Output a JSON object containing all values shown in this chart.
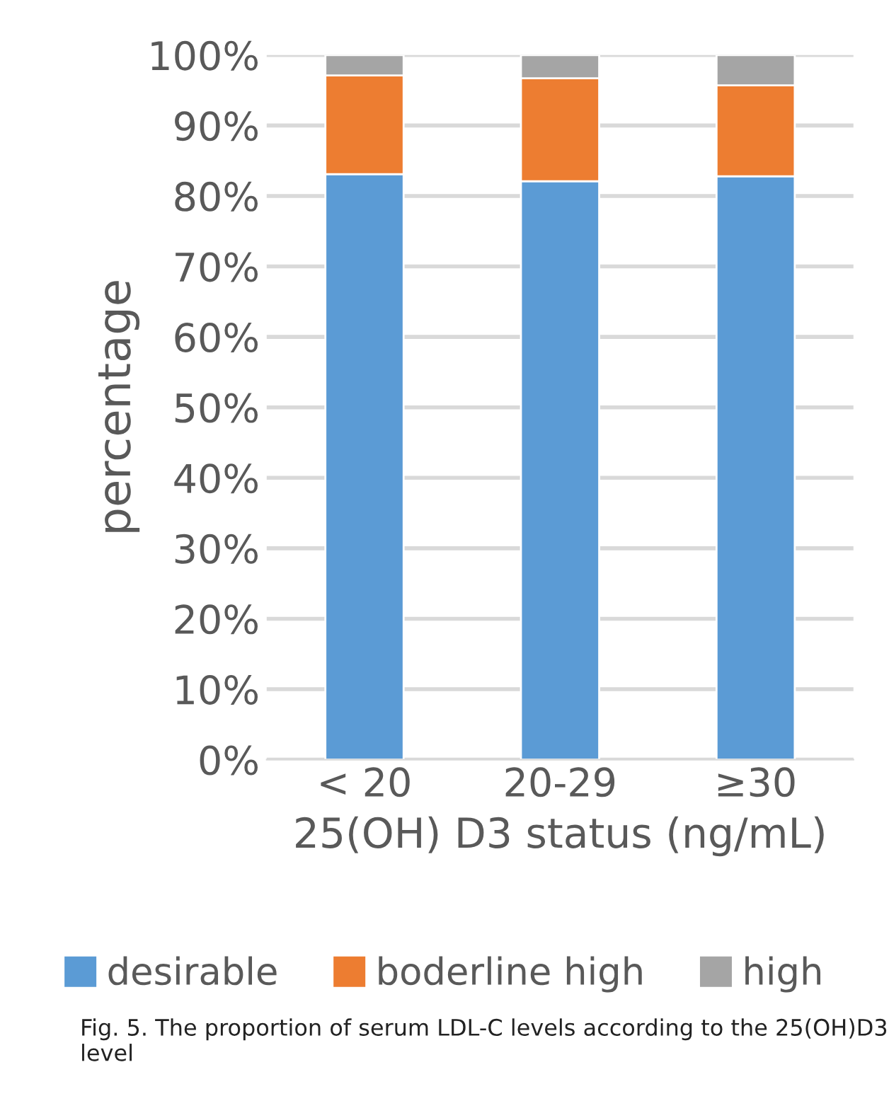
{
  "chart_data": {
    "type": "bar",
    "stacked": true,
    "categories": [
      "< 20",
      "20-29",
      "≥30"
    ],
    "series": [
      {
        "name": "desirable",
        "color": "#5b9bd5",
        "values": [
          83.1,
          82.1,
          82.8
        ]
      },
      {
        "name": "boderline high",
        "color": "#ed7d31",
        "values": [
          14.0,
          14.6,
          12.9
        ]
      },
      {
        "name": "high",
        "color": "#a5a5a5",
        "values": [
          2.9,
          3.3,
          4.3
        ]
      }
    ],
    "xlabel": "25(OH) D3 status (ng/mL)",
    "ylabel": "percentage",
    "ylim": [
      0,
      100
    ],
    "yticks": [
      {
        "value": 0,
        "label": "0%"
      },
      {
        "value": 10,
        "label": "10%"
      },
      {
        "value": 20,
        "label": "20%"
      },
      {
        "value": 30,
        "label": "30%"
      },
      {
        "value": 40,
        "label": "40%"
      },
      {
        "value": 50,
        "label": "50%"
      },
      {
        "value": 60,
        "label": "60%"
      },
      {
        "value": 70,
        "label": "70%"
      },
      {
        "value": 80,
        "label": "80%"
      },
      {
        "value": 90,
        "label": "90%"
      },
      {
        "value": 100,
        "label": "100%"
      }
    ],
    "grid": "y",
    "legend": "bottom",
    "annotations": [
      "Fig. 5. The proportion of serum LDL-C levels according to the 25(OH)D3 level"
    ]
  }
}
